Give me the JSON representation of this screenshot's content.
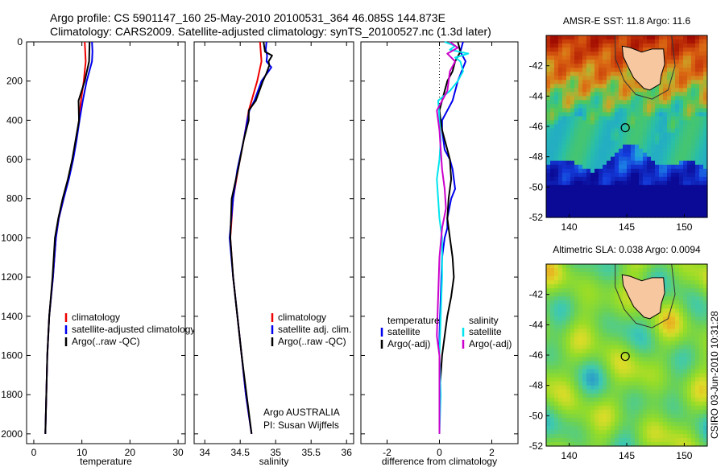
{
  "header": {
    "title_line1": "Argo profile: CS 5901147_160 25-May-2010 20100531_364 46.085S 144.873E",
    "title_line2": "Climatology: CARS2009. Satellite-adjusted climatology: synTS_20100527.nc (1.3d later)"
  },
  "side_text": "CSIRO 03-Jun-2010 10:31:28",
  "colors": {
    "climatology": "#ee0000",
    "satellite": "#0000ee",
    "argo": "#000000",
    "sat_salt": "#00e5ee",
    "argo_adj_salt": "#cc00cc"
  },
  "chart_data": [
    {
      "type": "line",
      "xlabel": "temperature",
      "xlim": [
        -1.5,
        31.5
      ],
      "ylim": [
        2050,
        0
      ],
      "reverse_y": true,
      "xticks": [
        0,
        10,
        20,
        30
      ],
      "xtick_labels": [
        "0",
        "10",
        "20",
        "30"
      ],
      "yticks": [
        0,
        200,
        400,
        600,
        800,
        1000,
        1200,
        1400,
        1600,
        1800,
        2000
      ],
      "ytick_labels": [
        "0",
        "200",
        "400",
        "600",
        "800",
        "1000",
        "1200",
        "1400",
        "1600",
        "1800",
        "2000"
      ],
      "legend": [
        "climatology",
        "satellite-adjusted climatology",
        "Argo(..raw -QC)"
      ],
      "series": [
        {
          "name": "climatology",
          "color": "#ee0000",
          "points": [
            [
              10.6,
              0
            ],
            [
              10.7,
              50
            ],
            [
              10.8,
              100
            ],
            [
              10.4,
              200
            ],
            [
              9.8,
              300
            ],
            [
              9.4,
              400
            ],
            [
              8.8,
              500
            ],
            [
              8.1,
              600
            ],
            [
              7.2,
              700
            ],
            [
              6.2,
              800
            ],
            [
              5.2,
              900
            ],
            [
              4.6,
              1000
            ],
            [
              4.0,
              1200
            ],
            [
              3.2,
              1400
            ],
            [
              2.8,
              1600
            ],
            [
              2.6,
              1800
            ],
            [
              2.4,
              2000
            ]
          ]
        },
        {
          "name": "satellite-adjusted climatology",
          "color": "#0000ee",
          "points": [
            [
              12.1,
              0
            ],
            [
              12.2,
              50
            ],
            [
              12.1,
              100
            ],
            [
              11.0,
              200
            ],
            [
              10.2,
              300
            ],
            [
              9.5,
              400
            ],
            [
              8.9,
              500
            ],
            [
              8.2,
              600
            ],
            [
              7.3,
              700
            ],
            [
              6.2,
              800
            ],
            [
              5.2,
              900
            ],
            [
              4.6,
              1000
            ],
            [
              4.0,
              1200
            ],
            [
              3.2,
              1400
            ],
            [
              2.8,
              1600
            ],
            [
              2.6,
              1800
            ],
            [
              2.4,
              2000
            ]
          ]
        },
        {
          "name": "Argo(..raw -QC)",
          "color": "#000000",
          "points": [
            [
              11.6,
              0
            ],
            [
              11.5,
              100
            ],
            [
              10.6,
              200
            ],
            [
              9.3,
              300
            ],
            [
              9.4,
              400
            ],
            [
              8.7,
              500
            ],
            [
              8.0,
              600
            ],
            [
              7.1,
              700
            ],
            [
              6.0,
              800
            ],
            [
              5.1,
              900
            ],
            [
              4.4,
              1000
            ],
            [
              3.9,
              1200
            ],
            [
              3.2,
              1400
            ],
            [
              2.8,
              1600
            ],
            [
              2.6,
              1800
            ],
            [
              2.4,
              2000
            ]
          ]
        }
      ]
    },
    {
      "type": "line",
      "xlabel": "salinity",
      "xlim": [
        33.85,
        36.1
      ],
      "ylim": [
        2050,
        0
      ],
      "reverse_y": true,
      "xticks": [
        34,
        34.5,
        35,
        35.5,
        36
      ],
      "xtick_labels": [
        "34",
        "34.5",
        "35",
        "35.5",
        "36"
      ],
      "legend": [
        "climatology",
        "satellite adj. clim.",
        "Argo(..raw -QC)"
      ],
      "annotation": [
        "Argo AUSTRALIA",
        "PI: Susan Wijffels"
      ],
      "series": [
        {
          "name": "climatology",
          "color": "#ee0000",
          "points": [
            [
              34.78,
              0
            ],
            [
              34.8,
              100
            ],
            [
              34.74,
              200
            ],
            [
              34.62,
              350
            ],
            [
              34.55,
              500
            ],
            [
              34.47,
              650
            ],
            [
              34.4,
              800
            ],
            [
              34.36,
              1000
            ],
            [
              34.4,
              1200
            ],
            [
              34.46,
              1400
            ],
            [
              34.52,
              1600
            ],
            [
              34.58,
              1800
            ],
            [
              34.66,
              2000
            ]
          ]
        },
        {
          "name": "satellite adj. clim.",
          "color": "#0000ee",
          "points": [
            [
              34.87,
              0
            ],
            [
              34.86,
              40
            ],
            [
              34.88,
              70
            ],
            [
              34.87,
              100
            ],
            [
              34.94,
              130
            ],
            [
              34.9,
              150
            ],
            [
              34.8,
              200
            ],
            [
              34.7,
              300
            ],
            [
              34.63,
              350
            ],
            [
              34.6,
              400
            ],
            [
              34.55,
              500
            ],
            [
              34.46,
              650
            ],
            [
              34.4,
              800
            ],
            [
              34.35,
              1000
            ],
            [
              34.4,
              1200
            ],
            [
              34.46,
              1400
            ],
            [
              34.52,
              1600
            ],
            [
              34.58,
              1800
            ],
            [
              34.66,
              2000
            ]
          ]
        },
        {
          "name": "Argo(..raw -QC)",
          "color": "#000000",
          "points": [
            [
              34.83,
              0
            ],
            [
              34.85,
              50
            ],
            [
              34.95,
              70
            ],
            [
              34.9,
              100
            ],
            [
              34.91,
              120
            ],
            [
              34.87,
              160
            ],
            [
              34.82,
              200
            ],
            [
              34.72,
              300
            ],
            [
              34.62,
              350
            ],
            [
              34.62,
              400
            ],
            [
              34.55,
              500
            ],
            [
              34.47,
              650
            ],
            [
              34.38,
              800
            ],
            [
              34.36,
              1000
            ],
            [
              34.4,
              1200
            ],
            [
              34.46,
              1400
            ],
            [
              34.52,
              1600
            ],
            [
              34.59,
              1800
            ],
            [
              34.66,
              2000
            ]
          ]
        }
      ]
    },
    {
      "type": "line",
      "xlabel": "difference from climatology",
      "xlim": [
        -3,
        3
      ],
      "ylim": [
        2050,
        0
      ],
      "reverse_y": true,
      "xticks": [
        -2,
        0,
        2
      ],
      "xtick_labels": [
        "-2",
        "0",
        "2"
      ],
      "legend_temperature_title": "temperature",
      "legend_salinity_title": "salinity",
      "legend_temperature": [
        "satellite",
        "Argo(-adj)"
      ],
      "legend_salinity": [
        "satellite",
        "Argo(-adj)"
      ],
      "series": [
        {
          "name": "temperature satellite",
          "color": "#0000ee",
          "points": [
            [
              0.9,
              0
            ],
            [
              0.8,
              50
            ],
            [
              1.0,
              100
            ],
            [
              0.7,
              200
            ],
            [
              0.5,
              300
            ],
            [
              0.3,
              350
            ],
            [
              0.1,
              400
            ],
            [
              0.1,
              450
            ],
            [
              0.2,
              550
            ],
            [
              0.4,
              600
            ],
            [
              0.5,
              650
            ],
            [
              0.55,
              700
            ],
            [
              0.6,
              750
            ],
            [
              0.45,
              800
            ],
            [
              0.3,
              900
            ],
            [
              0.3,
              950
            ],
            [
              0.2,
              1000
            ],
            [
              0.1,
              1100
            ],
            [
              0.05,
              1300
            ],
            [
              0.0,
              1500
            ],
            [
              0.0,
              1700
            ],
            [
              0.0,
              2000
            ]
          ]
        },
        {
          "name": "temperature Argo(-adj)",
          "color": "#000000",
          "points": [
            [
              0.7,
              0
            ],
            [
              0.8,
              50
            ],
            [
              0.6,
              100
            ],
            [
              0.5,
              150
            ],
            [
              0.3,
              200
            ],
            [
              0.0,
              350
            ],
            [
              0.05,
              400
            ],
            [
              0.1,
              450
            ],
            [
              0.3,
              550
            ],
            [
              0.4,
              600
            ],
            [
              0.45,
              700
            ],
            [
              0.35,
              800
            ],
            [
              0.3,
              900
            ],
            [
              0.4,
              1000
            ],
            [
              0.5,
              1100
            ],
            [
              0.55,
              1200
            ],
            [
              0.45,
              1300
            ],
            [
              0.3,
              1400
            ],
            [
              0.2,
              1500
            ],
            [
              0.1,
              1600
            ],
            [
              0.0,
              1800
            ],
            [
              0.0,
              2000
            ]
          ]
        },
        {
          "name": "salinity satellite",
          "color": "#00e5ee",
          "points": [
            [
              0.2,
              0
            ],
            [
              0.6,
              20
            ],
            [
              0.4,
              40
            ],
            [
              1.1,
              60
            ],
            [
              0.6,
              80
            ],
            [
              0.8,
              100
            ],
            [
              0.9,
              150
            ],
            [
              0.7,
              200
            ],
            [
              0.4,
              250
            ],
            [
              -0.05,
              300
            ],
            [
              -0.02,
              350
            ],
            [
              0.0,
              400
            ],
            [
              0.05,
              500
            ],
            [
              0.0,
              600
            ],
            [
              -0.1,
              700
            ],
            [
              -0.05,
              800
            ],
            [
              0.0,
              900
            ],
            [
              0.1,
              1000
            ],
            [
              0.1,
              1200
            ],
            [
              0.05,
              1400
            ],
            [
              0.0,
              1600
            ],
            [
              0.05,
              1800
            ],
            [
              0.0,
              2000
            ]
          ]
        },
        {
          "name": "salinity Argo(-adj)",
          "color": "#cc00cc",
          "points": [
            [
              0.4,
              0
            ],
            [
              0.7,
              30
            ],
            [
              0.3,
              60
            ],
            [
              0.6,
              100
            ],
            [
              0.4,
              150
            ],
            [
              0.3,
              250
            ],
            [
              -0.1,
              350
            ],
            [
              0.0,
              450
            ],
            [
              0.05,
              550
            ],
            [
              0.1,
              650
            ],
            [
              0.2,
              750
            ],
            [
              0.25,
              850
            ],
            [
              0.1,
              950
            ],
            [
              0.0,
              1100
            ],
            [
              -0.05,
              1300
            ],
            [
              -0.1,
              1500
            ],
            [
              0.0,
              1600
            ],
            [
              0.0,
              1800
            ],
            [
              0.0,
              2000
            ]
          ]
        }
      ]
    },
    {
      "type": "heatmap",
      "title": "AMSR-E SST: 11.8 Argo: 11.6",
      "xlim": [
        138,
        152
      ],
      "ylim": [
        -52,
        -40
      ],
      "xticks": [
        140,
        145,
        150
      ],
      "xtick_labels": [
        "140",
        "145",
        "150"
      ],
      "yticks": [
        -42,
        -44,
        -46,
        -48,
        -50,
        -52
      ],
      "ytick_labels": [
        "-42",
        "-44",
        "-46",
        "-48",
        "-50",
        "-52"
      ],
      "marker": [
        144.873,
        -46.085
      ],
      "land_color": "#f7c8a0"
    },
    {
      "type": "heatmap",
      "title": "Altimetric SLA: 0.038 Argo: 0.0094",
      "xlim": [
        138,
        152
      ],
      "ylim": [
        -52,
        -40
      ],
      "xticks": [
        140,
        145,
        150
      ],
      "xtick_labels": [
        "140",
        "145",
        "150"
      ],
      "yticks": [
        -42,
        -44,
        -46,
        -48,
        -50,
        -52
      ],
      "ytick_labels": [
        "-42",
        "-44",
        "-46",
        "-48",
        "-50",
        "-52"
      ],
      "marker": [
        144.873,
        -46.085
      ],
      "land_color": "#f7c8a0"
    }
  ]
}
